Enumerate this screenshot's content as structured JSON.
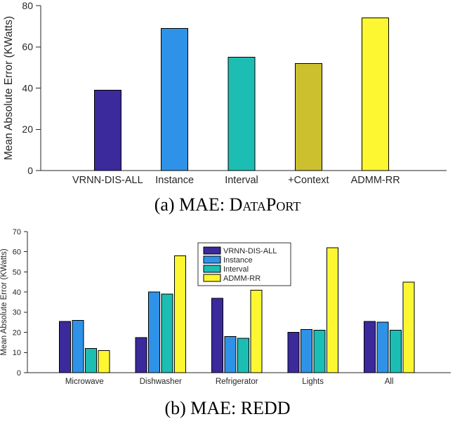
{
  "figure": {
    "caption_a_prefix": "(a) MAE: ",
    "caption_a_name": "DataPort",
    "caption_b": "(b) MAE: REDD"
  },
  "chart_data": [
    {
      "id": "mae-dataport",
      "type": "bar",
      "categories": [
        "VRNN-DIS-ALL",
        "Instance",
        "Interval",
        "+Context",
        "ADMM-RR"
      ],
      "values": [
        39,
        69,
        55,
        52,
        74
      ],
      "bar_colors": [
        "#3a2a9b",
        "#2e93e8",
        "#1cbeb4",
        "#ccc02e",
        "#fdf732"
      ],
      "bar_edge_color": "#000000",
      "ylabel": "Mean Absolute Error (KWatts)",
      "ylim": [
        0,
        80
      ],
      "yticks": [
        0,
        20,
        40,
        60,
        80
      ],
      "grid": false,
      "legend": null
    },
    {
      "id": "mae-redd",
      "type": "bar",
      "categories": [
        "Microwave",
        "Dishwasher",
        "Refrigerator",
        "Lights",
        "All"
      ],
      "series": [
        {
          "name": "VRNN-DIS-ALL",
          "color": "#3a2a9b",
          "values": [
            25.5,
            17.5,
            37,
            20,
            25.5
          ]
        },
        {
          "name": "Instance",
          "color": "#2e93e8",
          "values": [
            26,
            40,
            18,
            21.5,
            25
          ]
        },
        {
          "name": "Interval",
          "color": "#1cbeb4",
          "values": [
            12,
            39,
            17,
            21,
            21
          ]
        },
        {
          "name": "ADMM-RR",
          "color": "#fdf732",
          "values": [
            11,
            58,
            41,
            62,
            45
          ]
        }
      ],
      "bar_edge_color": "#000000",
      "ylabel": "Mean Absolute Error (KWatts)",
      "ylim": [
        0,
        70
      ],
      "yticks": [
        0,
        10,
        20,
        30,
        40,
        50,
        60,
        70
      ],
      "grid": false,
      "legend_position": "upper-center-right"
    }
  ]
}
